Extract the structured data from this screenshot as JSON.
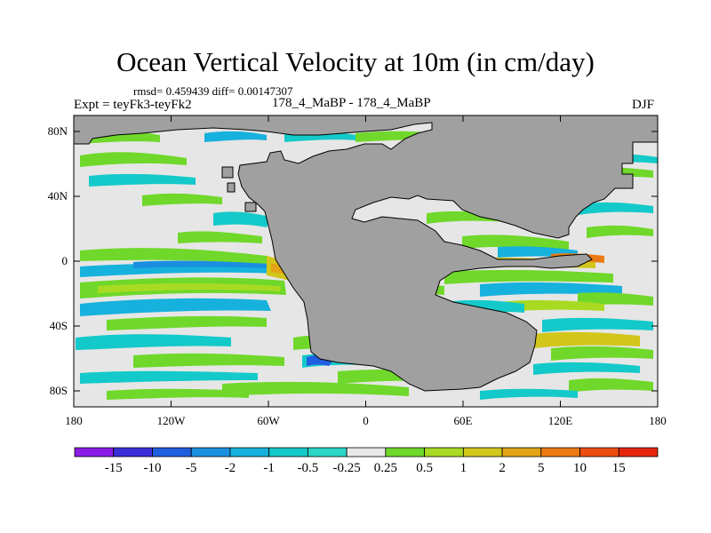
{
  "title": "Ocean Vertical Velocity at 10m (in cm/day)",
  "stats": "rmsd= 0.459439 diff= 0.00147307",
  "expt": "Expt = teyFk3-teyFk2",
  "case": "178_4_MaBP - 178_4_MaBP",
  "season": "DJF",
  "axes": {
    "lat_labels": [
      "80N",
      "40N",
      "0",
      "40S",
      "80S"
    ],
    "lon_labels": [
      "180",
      "120W",
      "60W",
      "0",
      "60E",
      "120E",
      "180"
    ]
  },
  "colorbar": {
    "labels": [
      "-15",
      "-10",
      "-5",
      "-2",
      "-1",
      "-0.5",
      "-0.25",
      "0.25",
      "0.5",
      "1",
      "2",
      "5",
      "10",
      "15"
    ],
    "colors": [
      "#8a1ce6",
      "#3a2fd9",
      "#1f5fe0",
      "#1a8fe0",
      "#17b1dd",
      "#14c9c9",
      "#2ad6c8",
      "#e8e8e8",
      "#6fd82a",
      "#a9da22",
      "#d2c61a",
      "#e3a415",
      "#ec7a12",
      "#ee4e10",
      "#e5260d"
    ]
  },
  "colors": {
    "land": "#a0a0a0",
    "ocean_neutral": "#e6e6e6"
  }
}
